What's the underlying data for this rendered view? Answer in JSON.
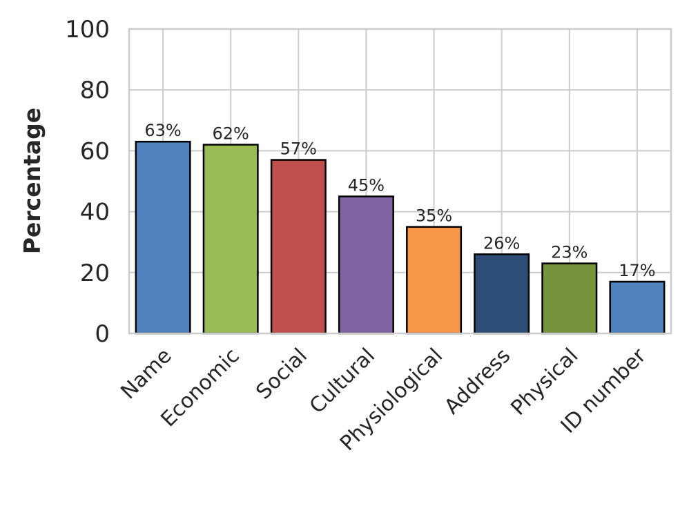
{
  "chart_data": {
    "type": "bar",
    "title": "",
    "xlabel": "",
    "ylabel": "Percentage",
    "ylim": [
      0,
      100
    ],
    "yticks": [
      0,
      20,
      40,
      60,
      80,
      100
    ],
    "grid": true,
    "legend": "none",
    "categories": [
      "Name",
      "Economic",
      "Social",
      "Cultural",
      "Physiological",
      "Address",
      "Physical",
      "ID number"
    ],
    "values": [
      63,
      62,
      57,
      45,
      35,
      26,
      23,
      17
    ],
    "value_labels": [
      "63%",
      "62%",
      "57%",
      "45%",
      "35%",
      "26%",
      "23%",
      "17%"
    ],
    "bar_colors": [
      "#4f81bd",
      "#9bbb59",
      "#c0504d",
      "#8064a2",
      "#f79646",
      "#2c4d75",
      "#77933c",
      "#4f81bd"
    ],
    "bar_edge_color": "#000000",
    "grid_color": "#cccccc"
  }
}
